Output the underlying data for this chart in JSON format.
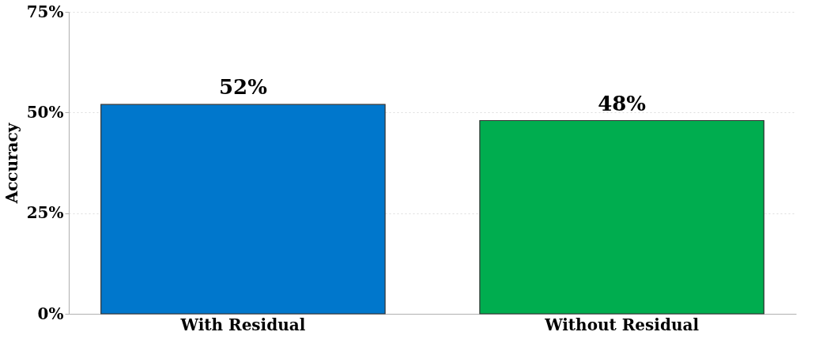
{
  "chart_data": {
    "type": "bar",
    "ylabel": "Accuracy",
    "categories": [
      "With Residual",
      "Without Residual"
    ],
    "values": [
      52,
      48
    ],
    "colors": [
      "#0077cc",
      "#00ad4f"
    ],
    "value_labels": [
      "52%",
      "48%"
    ],
    "ylim": [
      0,
      75
    ],
    "yticks": [
      {
        "value": 0,
        "label": "0%"
      },
      {
        "value": 25,
        "label": "25%"
      },
      {
        "value": 50,
        "label": "50%"
      },
      {
        "value": 75,
        "label": "75%"
      }
    ],
    "grid": "y"
  }
}
